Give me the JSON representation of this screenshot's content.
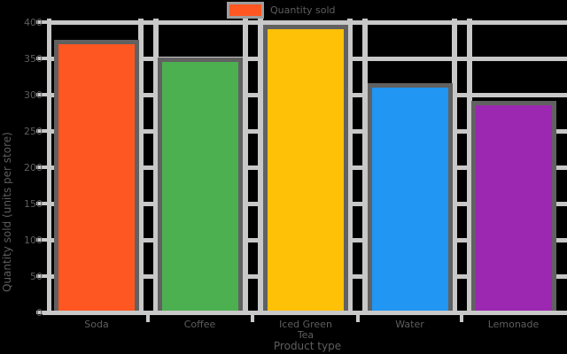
{
  "chart_data": {
    "type": "bar",
    "categories": [
      "Soda",
      "Coffee",
      "Iced Green\nTea",
      "Water",
      "Lemonade"
    ],
    "values": [
      370,
      345,
      390,
      310,
      285
    ],
    "series": [
      {
        "name": "Quantity sold",
        "values": [
          370,
          345,
          390,
          310,
          285
        ]
      }
    ],
    "bar_colors": [
      "#FF5722",
      "#4CAF50",
      "#FFC107",
      "#2196F3",
      "#9C27B0"
    ],
    "title": "",
    "xlabel": "Product type",
    "ylabel": "Quantity sold (units per store)",
    "ylim": [
      0,
      400
    ],
    "yticks": [
      0,
      50,
      100,
      150,
      200,
      250,
      300,
      350,
      400
    ],
    "grid": "on",
    "legend_position": "upper center"
  },
  "legend": {
    "label": "Quantity sold",
    "swatch_color": "#FF5722",
    "border_color": "#9e9e9e"
  },
  "axes": {
    "x_label": "Product type",
    "y_label": "Quantity sold (units per store)"
  },
  "colors": {
    "background": "#000000",
    "grid": "#c8c8c8",
    "bar_edge": "#616161",
    "text": "#5e5e5e"
  }
}
